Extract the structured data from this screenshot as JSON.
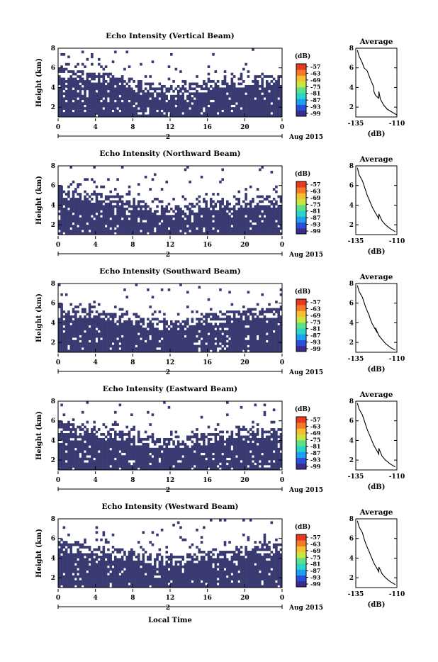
{
  "colors": {
    "background": "#ffffff",
    "echo_fill": "#3a3a72",
    "colormap": [
      "#3a2d8f",
      "#2a4fd8",
      "#1ea0f0",
      "#2ad4c8",
      "#5ee08a",
      "#c8e640",
      "#f5c030",
      "#f47a28",
      "#e83a20"
    ]
  },
  "chart_data": [
    {
      "type": "heatmap",
      "title": "Echo Intensity (Vertical Beam)",
      "ylabel": "Height (km)",
      "y_ticks": [
        "2",
        "4",
        "6",
        "8"
      ],
      "ylim": [
        1,
        8
      ],
      "x_ticks": [
        "0",
        "4",
        "8",
        "12",
        "16",
        "20",
        "0"
      ],
      "xlim": [
        0,
        24
      ],
      "date_axis": {
        "tick": "2",
        "label": "Aug 2015"
      },
      "colorbar": {
        "label": "(dB)",
        "ticks": [
          "-57",
          "-63",
          "-69",
          "-75",
          "-81",
          "-87",
          "-93",
          "-99"
        ]
      },
      "echo_top_km": [
        5.5,
        5.4,
        5.3,
        5.2,
        5.1,
        5.0,
        4.9,
        4.6,
        4.4,
        4.2,
        4.1,
        3.9,
        3.9,
        3.9,
        4.0,
        4.2,
        4.4,
        4.5,
        4.6,
        4.7,
        4.8,
        4.8,
        4.9,
        4.9
      ],
      "average_profile": {
        "title": "Average",
        "xlabel": "(dB)",
        "x_ticks": [
          "-135",
          "-110"
        ],
        "xlim": [
          -135,
          -110
        ],
        "y_ticks": [
          "2",
          "4",
          "6",
          "8"
        ],
        "ylim": [
          1,
          8
        ],
        "x": [
          -134,
          -133,
          -131,
          -130,
          -128,
          -127,
          -126,
          -125,
          -124,
          -124,
          -123,
          -121,
          -121,
          -120,
          -118,
          -116,
          -113,
          -110
        ],
        "y": [
          7.8,
          7.2,
          6.5,
          6.0,
          5.7,
          5.2,
          4.8,
          4.4,
          4.0,
          3.6,
          3.2,
          2.9,
          3.6,
          2.8,
          2.2,
          1.8,
          1.5,
          1.2
        ]
      }
    },
    {
      "type": "heatmap",
      "title": "Echo Intensity (Northward Beam)",
      "ylabel": "Height (km)",
      "y_ticks": [
        "2",
        "4",
        "6",
        "8"
      ],
      "ylim": [
        1,
        8
      ],
      "x_ticks": [
        "0",
        "4",
        "8",
        "12",
        "16",
        "20",
        "0"
      ],
      "xlim": [
        0,
        24
      ],
      "date_axis": {
        "tick": "2",
        "label": "Aug 2015"
      },
      "colorbar": {
        "label": "(dB)",
        "ticks": [
          "-57",
          "-63",
          "-69",
          "-75",
          "-81",
          "-87",
          "-93",
          "-99"
        ]
      },
      "echo_top_km": [
        5.3,
        5.2,
        5.0,
        4.9,
        4.8,
        4.7,
        4.5,
        4.2,
        4.0,
        3.8,
        3.7,
        3.6,
        3.6,
        3.7,
        3.8,
        4.0,
        4.1,
        4.2,
        4.2,
        4.3,
        4.4,
        4.5,
        4.6,
        4.6
      ],
      "average_profile": {
        "title": "Average",
        "xlabel": "(dB)",
        "x_ticks": [
          "-135",
          "-110"
        ],
        "xlim": [
          -135,
          -110
        ],
        "y_ticks": [
          "2",
          "4",
          "6",
          "8"
        ],
        "ylim": [
          1,
          8
        ],
        "x": [
          -134,
          -133,
          -131,
          -130,
          -129,
          -128,
          -127,
          -126,
          -125,
          -124,
          -123,
          -122,
          -121,
          -121,
          -119,
          -117,
          -114,
          -111
        ],
        "y": [
          7.8,
          7.1,
          6.5,
          6.0,
          5.5,
          5.0,
          4.6,
          4.2,
          3.8,
          3.5,
          3.2,
          2.9,
          2.6,
          3.1,
          2.4,
          2.0,
          1.6,
          1.3
        ]
      }
    },
    {
      "type": "heatmap",
      "title": "Echo Intensity (Southward Beam)",
      "ylabel": "Height (km)",
      "y_ticks": [
        "2",
        "4",
        "6",
        "8"
      ],
      "ylim": [
        1,
        8
      ],
      "x_ticks": [
        "0",
        "4",
        "8",
        "12",
        "16",
        "20",
        "0"
      ],
      "xlim": [
        0,
        24
      ],
      "date_axis": {
        "tick": "2",
        "label": "Aug 2015"
      },
      "colorbar": {
        "label": "(dB)",
        "ticks": [
          "-57",
          "-63",
          "-69",
          "-75",
          "-81",
          "-87",
          "-93",
          "-99"
        ]
      },
      "echo_top_km": [
        5.4,
        5.3,
        5.2,
        5.1,
        5.0,
        4.9,
        4.7,
        4.5,
        4.3,
        4.1,
        4.0,
        3.9,
        3.9,
        3.9,
        4.1,
        4.3,
        4.5,
        4.7,
        4.8,
        4.9,
        5.0,
        5.0,
        5.1,
        5.1
      ],
      "average_profile": {
        "title": "Average",
        "xlabel": "(dB)",
        "x_ticks": [
          "-135",
          "-110"
        ],
        "xlim": [
          -135,
          -110
        ],
        "y_ticks": [
          "2",
          "4",
          "6",
          "8"
        ],
        "ylim": [
          1,
          8
        ],
        "x": [
          -134,
          -133,
          -131,
          -130,
          -129,
          -128,
          -127,
          -126,
          -125,
          -124,
          -123,
          -122,
          -123,
          -121,
          -119,
          -117,
          -114,
          -111
        ],
        "y": [
          7.8,
          7.2,
          6.6,
          6.1,
          5.6,
          5.2,
          4.8,
          4.3,
          3.9,
          3.6,
          3.3,
          3.0,
          3.5,
          2.7,
          2.3,
          1.9,
          1.5,
          1.2
        ]
      }
    },
    {
      "type": "heatmap",
      "title": "Echo Intensity (Eastward Beam)",
      "ylabel": "Height (km)",
      "y_ticks": [
        "2",
        "4",
        "6",
        "8"
      ],
      "ylim": [
        1,
        8
      ],
      "x_ticks": [
        "0",
        "4",
        "8",
        "12",
        "16",
        "20",
        "0"
      ],
      "xlim": [
        0,
        24
      ],
      "date_axis": {
        "tick": "2",
        "label": "Aug 2015"
      },
      "colorbar": {
        "label": "(dB)",
        "ticks": [
          "-57",
          "-63",
          "-69",
          "-75",
          "-81",
          "-87",
          "-93",
          "-99"
        ]
      },
      "echo_top_km": [
        5.4,
        5.3,
        5.2,
        5.0,
        4.9,
        4.8,
        4.6,
        4.4,
        4.2,
        4.0,
        3.9,
        3.8,
        3.8,
        3.9,
        4.0,
        4.2,
        4.4,
        4.5,
        4.6,
        4.7,
        4.8,
        4.8,
        4.9,
        4.9
      ],
      "average_profile": {
        "title": "Average",
        "xlabel": "(dB)",
        "x_ticks": [
          "-135",
          "-110"
        ],
        "xlim": [
          -135,
          -110
        ],
        "y_ticks": [
          "2",
          "4",
          "6",
          "8"
        ],
        "ylim": [
          1,
          8
        ],
        "x": [
          -134,
          -133,
          -131,
          -130,
          -129,
          -128,
          -127,
          -126,
          -125,
          -124,
          -123,
          -122,
          -121,
          -121,
          -119,
          -117,
          -114,
          -111
        ],
        "y": [
          7.8,
          7.2,
          6.6,
          6.1,
          5.6,
          5.1,
          4.7,
          4.3,
          3.9,
          3.5,
          3.2,
          2.9,
          2.6,
          3.2,
          2.4,
          2.0,
          1.6,
          1.3
        ]
      }
    },
    {
      "type": "heatmap",
      "title": "Echo Intensity (Westward Beam)",
      "ylabel": "Height (km)",
      "y_ticks": [
        "2",
        "4",
        "6",
        "8"
      ],
      "ylim": [
        1,
        8
      ],
      "x_ticks": [
        "0",
        "4",
        "8",
        "12",
        "16",
        "20",
        "0"
      ],
      "xlim": [
        0,
        24
      ],
      "date_axis": {
        "tick": "2",
        "label": "Aug 2015"
      },
      "colorbar": {
        "label": "(dB)",
        "ticks": [
          "-57",
          "-63",
          "-69",
          "-75",
          "-81",
          "-87",
          "-93",
          "-99"
        ]
      },
      "echo_top_km": [
        5.3,
        5.2,
        5.1,
        5.0,
        4.9,
        4.8,
        4.6,
        4.4,
        4.2,
        4.0,
        3.9,
        3.8,
        3.8,
        3.9,
        4.1,
        4.3,
        4.5,
        4.6,
        4.7,
        4.8,
        4.9,
        4.9,
        5.0,
        5.0
      ],
      "average_profile": {
        "title": "Average",
        "xlabel": "(dB)",
        "x_ticks": [
          "-135",
          "-110"
        ],
        "xlim": [
          -135,
          -110
        ],
        "y_ticks": [
          "2",
          "4",
          "6",
          "8"
        ],
        "ylim": [
          1,
          8
        ],
        "x": [
          -134,
          -133,
          -131,
          -130,
          -129,
          -128,
          -127,
          -126,
          -125,
          -124,
          -123,
          -122,
          -121,
          -121,
          -119,
          -117,
          -114,
          -111
        ],
        "y": [
          7.8,
          7.2,
          6.6,
          6.0,
          5.5,
          5.1,
          4.7,
          4.3,
          3.9,
          3.5,
          3.2,
          2.9,
          2.6,
          3.1,
          2.4,
          2.0,
          1.6,
          1.3
        ]
      }
    }
  ],
  "figure": {
    "xlabel": "Local Time"
  }
}
